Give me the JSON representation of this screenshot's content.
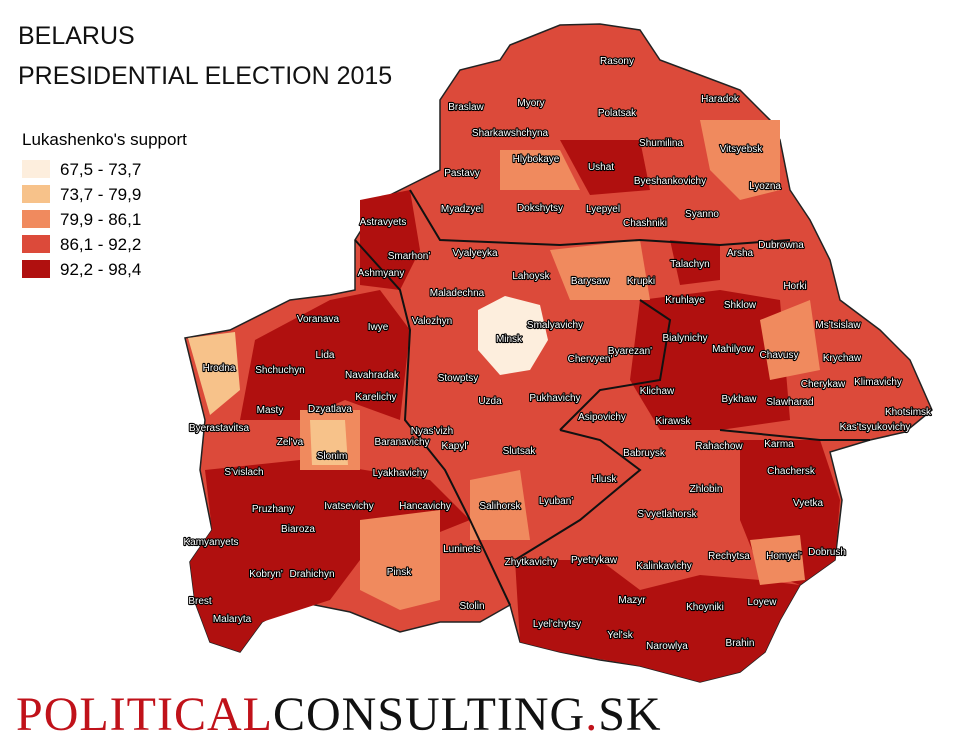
{
  "title": [
    "BELARUS",
    "PRESIDENTIAL ELECTION 2015"
  ],
  "legend": {
    "title": "Lukashenko's support",
    "items": [
      {
        "label": "67,5 - 73,7",
        "color": "#fdeedd"
      },
      {
        "label": "73,7 - 79,9",
        "color": "#f7c28a"
      },
      {
        "label": "79,9 - 86,1",
        "color": "#f08a5e"
      },
      {
        "label": "86,1 - 92,2",
        "color": "#dc4a3a"
      },
      {
        "label": "92,2 - 98,4",
        "color": "#b0100f"
      }
    ]
  },
  "districts": [
    "Rasony",
    "Braslaw",
    "Myory",
    "Haradok",
    "Polatsak",
    "Sharkawshchyna",
    "Shumilina",
    "Vitsyebsk",
    "Hlybokaye",
    "Ushat",
    "Pastavy",
    "Byeshankovichy",
    "Lyozna",
    "Dokshytsy",
    "Myadzyel",
    "Lyepyel",
    "Syanno",
    "Chashniki",
    "Astravyets",
    "Smarhon'",
    "Arsha",
    "Dubrowna",
    "Vyalyeyka",
    "Talachyn",
    "Ashmyany",
    "Lahoysk",
    "Barysaw",
    "Krupki",
    "Horki",
    "Maladechna",
    "Kruhlaye",
    "Shklow",
    "Valozhyn",
    "Smalyavichy",
    "Voranava",
    "Iwye",
    "Ms'tsislaw",
    "Minsk",
    "Bialynichy",
    "Chervyen'",
    "Byarezan'",
    "Mahilyow",
    "Lida",
    "Chavusy",
    "Krychaw",
    "Hrodna",
    "Shchuchyn",
    "Navahradak",
    "Stowptsy",
    "Cherykaw",
    "Klimavichy",
    "Klichaw",
    "Karelichy",
    "Masty",
    "Dzyatlava",
    "Uzda",
    "Pukhavichy",
    "Bykhaw",
    "Slawharad",
    "Asipovichy",
    "Kirawsk",
    "Khotsimsk",
    "Byerastavitsa",
    "Nyas'vizh",
    "Baranavichy",
    "Zel'va",
    "Kas'tsyukovichy",
    "Kapyl'",
    "Slutsak",
    "Rahachow",
    "Karma",
    "Babruysk",
    "Slonim",
    "Chachersk",
    "S'vislach",
    "Lyakhavichy",
    "Hlusk",
    "Zhlobin",
    "Vyetka",
    "Pruzhany",
    "Ivatsevichy",
    "Hancavichy",
    "Lyuban'",
    "Salihorsk",
    "S'vyetlahorsk",
    "Biaroza",
    "Kamyanyets",
    "Luninets",
    "Zhytkavichy",
    "Pyetrykaw",
    "Kalinkavichy",
    "Rechytsa",
    "Homyel'",
    "Dobrush",
    "Kobryn'",
    "Drahichyn",
    "Pinsk",
    "Brest",
    "Stolin",
    "Mazyr",
    "Loyew",
    "Khoyniki",
    "Malaryta",
    "Lyel'chytsy",
    "Yel'sk",
    "Narowlya",
    "Brahin"
  ],
  "footer": [
    "POLITICAL",
    "CONSULTING",
    ".",
    "SK"
  ]
}
